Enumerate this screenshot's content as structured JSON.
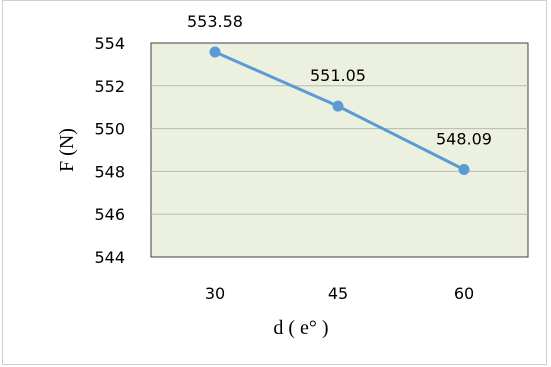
{
  "chart_data": {
    "type": "line",
    "x": [
      30,
      45,
      60
    ],
    "categories": [
      "30",
      "45",
      "60"
    ],
    "series": [
      {
        "values": [
          553.58,
          551.05,
          548.09
        ],
        "color": "#5b9bd5"
      }
    ],
    "data_labels": [
      "553.58",
      "551.05",
      "548.09"
    ],
    "ylabel": "F (N)",
    "xlabel": "d ( e° )",
    "ylim": [
      544,
      554
    ],
    "yticks": [
      "544",
      "546",
      "548",
      "550",
      "552",
      "554"
    ],
    "grid": true,
    "legend": "none",
    "plot_background": "#ebf1de",
    "gridline_color": "#b7b7b7"
  }
}
